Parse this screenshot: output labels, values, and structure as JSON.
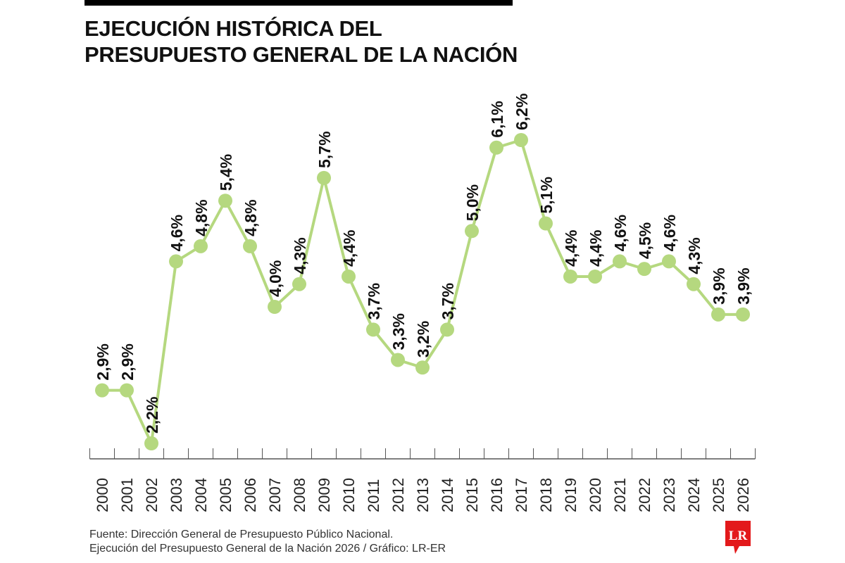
{
  "title_lines": [
    "EJECUCIÓN HISTÓRICA DEL",
    "PRESUPUESTO GENERAL DE LA NACIÓN"
  ],
  "source_lines": [
    "Fuente: Dirección General de Presupuesto Público Nacional.",
    "Ejecución del Presupuesto General de la Nación 2026 / Gráfico: LR-ER"
  ],
  "logo_text": "LR",
  "colors": {
    "line": "#b5d87f",
    "accent": "#e3191b",
    "text": "#111111",
    "axis": "#555555"
  },
  "chart_data": {
    "type": "line",
    "title": "EJECUCIÓN HISTÓRICA DEL PRESUPUESTO GENERAL DE LA NACIÓN",
    "xlabel": "",
    "ylabel": "",
    "grid": false,
    "categories": [
      "2000",
      "2001",
      "2002",
      "2003",
      "2004",
      "2005",
      "2006",
      "2007",
      "2008",
      "2009",
      "2010",
      "2011",
      "2012",
      "2013",
      "2014",
      "2015",
      "2016",
      "2017",
      "2018",
      "2019",
      "2020",
      "2021",
      "2022",
      "2023",
      "2024",
      "2025",
      "2026"
    ],
    "values": [
      2.9,
      2.9,
      2.2,
      4.6,
      4.8,
      5.4,
      4.8,
      4.0,
      4.3,
      5.7,
      4.4,
      3.7,
      3.3,
      3.2,
      3.7,
      5.0,
      6.1,
      6.2,
      5.1,
      4.4,
      4.4,
      4.6,
      4.5,
      4.6,
      4.3,
      3.9,
      3.9
    ],
    "labels": [
      "2,9%",
      "2,9%",
      "2,2%",
      "4,6%",
      "4,8%",
      "5,4%",
      "4,8%",
      "4,0%",
      "4,3%",
      "5,7%",
      "4,4%",
      "3,7%",
      "3,3%",
      "3,2%",
      "3,7%",
      "5,0%",
      "6,1%",
      "6,2%",
      "5,1%",
      "4,4%",
      "4,4%",
      "4,6%",
      "4,5%",
      "4,6%",
      "4,3%",
      "3,9%",
      "3,9%"
    ],
    "ylim": [
      2.2,
      6.2
    ]
  }
}
